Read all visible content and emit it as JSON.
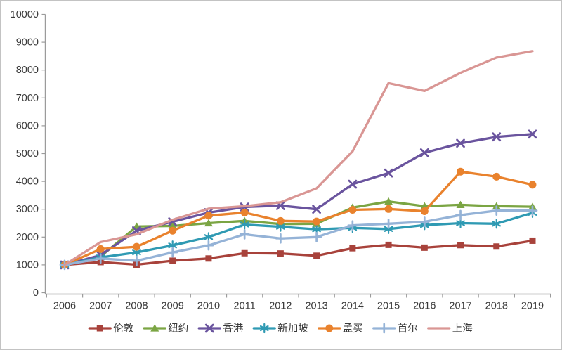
{
  "chart": {
    "background": "#ffffff",
    "axis_color": "#9b9b9b",
    "text_color": "#3a3a3a",
    "y_axis": {
      "min": 0,
      "max": 10000,
      "step": 1000,
      "tick_labels": [
        "0",
        "1000",
        "2000",
        "3000",
        "4000",
        "5000",
        "6000",
        "7000",
        "8000",
        "9000",
        "10000"
      ]
    },
    "x_axis": {
      "labels": [
        "2006",
        "2007",
        "2008",
        "2009",
        "2010",
        "2011",
        "2012",
        "2013",
        "2014",
        "2015",
        "2016",
        "2017",
        "2018",
        "2019"
      ]
    },
    "legend_labels": [
      "伦敦",
      "纽约",
      "香港",
      "新加坡",
      "孟买",
      "首尔",
      "上海"
    ]
  },
  "chart_data": {
    "type": "line",
    "title": "",
    "xlabel": "",
    "ylabel": "",
    "ylim": [
      0,
      10000
    ],
    "y_step": 1000,
    "grid": false,
    "legend_position": "bottom",
    "categories": [
      "2006",
      "2007",
      "2008",
      "2009",
      "2010",
      "2011",
      "2012",
      "2013",
      "2014",
      "2015",
      "2016",
      "2017",
      "2018",
      "2019"
    ],
    "series": [
      {
        "key": "london",
        "name": "伦敦",
        "color": "#A8423B",
        "marker": "square",
        "values": [
          1000,
          1100,
          1010,
          1150,
          1230,
          1420,
          1410,
          1330,
          1600,
          1720,
          1620,
          1710,
          1660,
          1870
        ]
      },
      {
        "key": "new-york",
        "name": "纽约",
        "color": "#7BA543",
        "marker": "triangle",
        "values": [
          1000,
          1300,
          2380,
          2400,
          2500,
          2580,
          2470,
          2480,
          3060,
          3280,
          3110,
          3160,
          3110,
          3090
        ]
      },
      {
        "key": "hong-kong",
        "name": "香港",
        "color": "#6A549E",
        "marker": "x",
        "values": [
          1000,
          1350,
          2230,
          2550,
          2880,
          3080,
          3130,
          3000,
          3900,
          4300,
          5030,
          5370,
          5600,
          5700
        ]
      },
      {
        "key": "singapore",
        "name": "新加坡",
        "color": "#2F9AB3",
        "marker": "asterisk",
        "values": [
          1000,
          1270,
          1450,
          1700,
          2000,
          2450,
          2370,
          2280,
          2330,
          2290,
          2430,
          2500,
          2480,
          2870
        ]
      },
      {
        "key": "mumbai",
        "name": "孟买",
        "color": "#E9822D",
        "marker": "circle",
        "values": [
          1000,
          1570,
          1650,
          2230,
          2770,
          2880,
          2580,
          2560,
          2980,
          3010,
          2930,
          4350,
          4170,
          3880
        ]
      },
      {
        "key": "seoul",
        "name": "首尔",
        "color": "#95B3D7",
        "marker": "plus",
        "values": [
          1000,
          1230,
          1150,
          1450,
          1700,
          2100,
          1950,
          2000,
          2420,
          2480,
          2550,
          2790,
          2950,
          2950
        ]
      },
      {
        "key": "shanghai",
        "name": "上海",
        "color": "#D99694",
        "marker": "none",
        "values": [
          1000,
          1820,
          2100,
          2620,
          3020,
          3110,
          3250,
          3750,
          5080,
          7530,
          7250,
          7900,
          8450,
          8680
        ]
      }
    ]
  }
}
